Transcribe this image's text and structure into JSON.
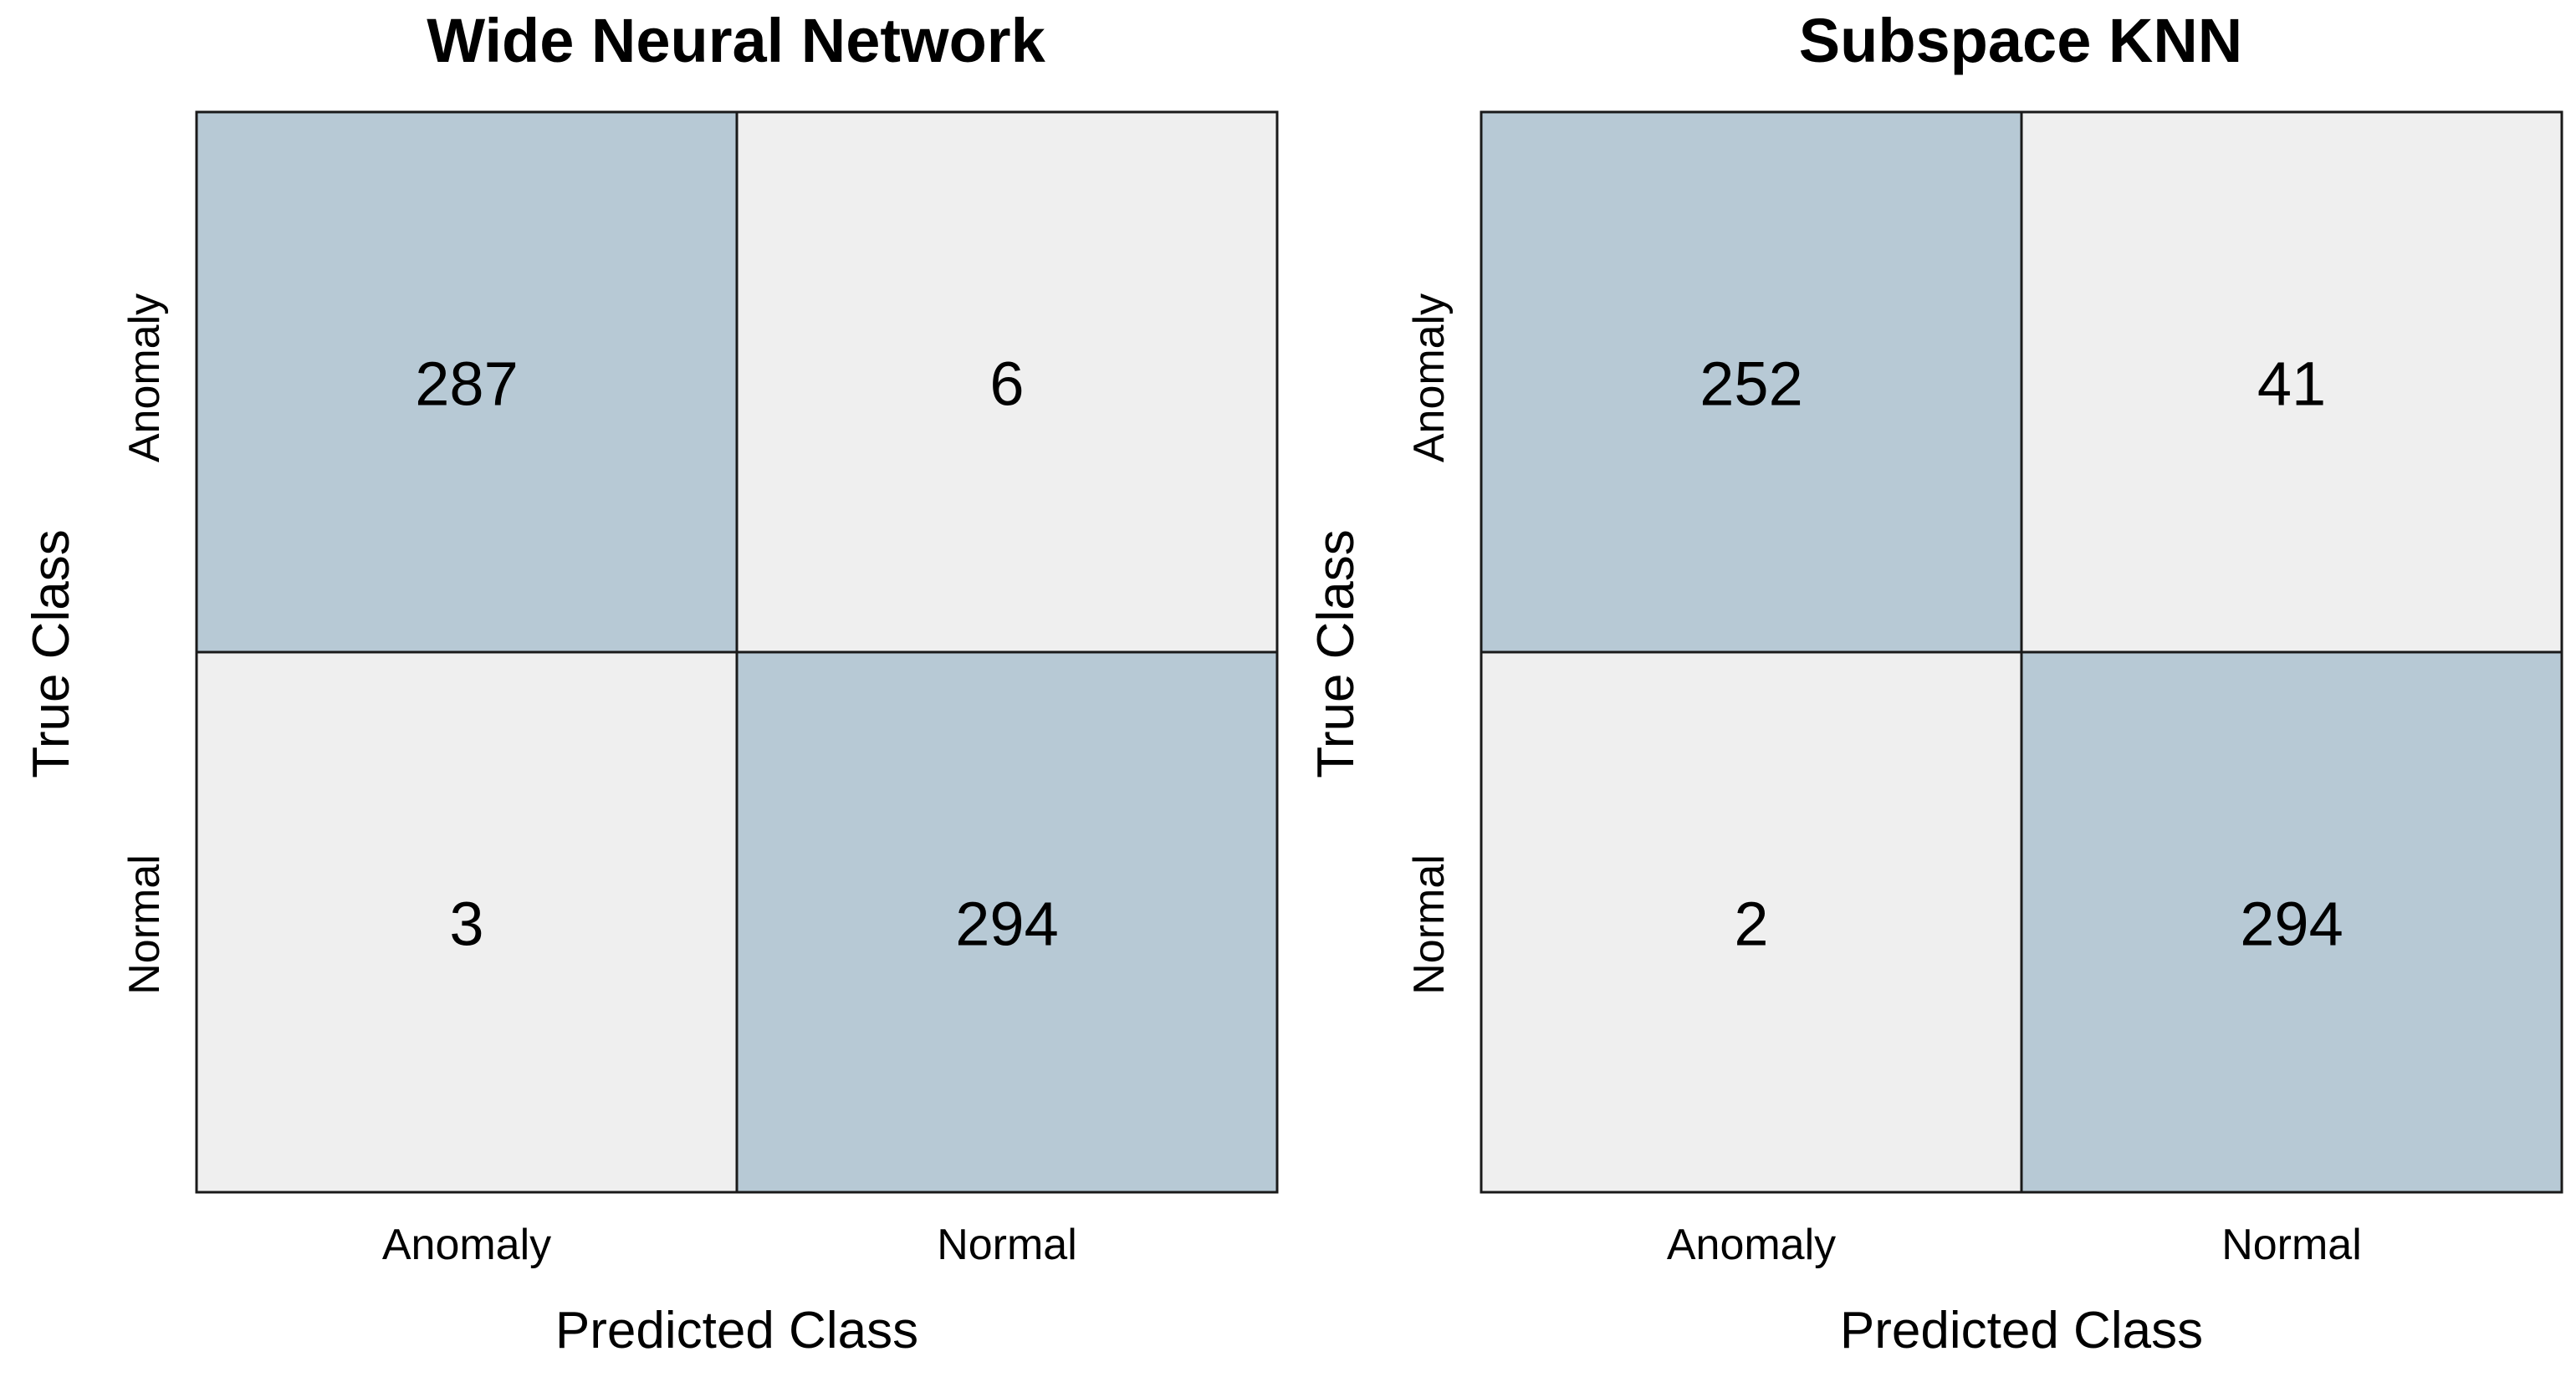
{
  "chart_data": [
    {
      "type": "heatmap",
      "title": "Wide Neural Network",
      "xlabel": "Predicted Class",
      "ylabel": "True Class",
      "x_categories": [
        "Anomaly",
        "Normal"
      ],
      "y_categories": [
        "Anomaly",
        "Normal"
      ],
      "values": [
        [
          287,
          6
        ],
        [
          3,
          294
        ]
      ]
    },
    {
      "type": "heatmap",
      "title": "Subspace KNN",
      "xlabel": "Predicted Class",
      "ylabel": "True Class",
      "x_categories": [
        "Anomaly",
        "Normal"
      ],
      "y_categories": [
        "Anomaly",
        "Normal"
      ],
      "values": [
        [
          252,
          41
        ],
        [
          2,
          294
        ]
      ]
    }
  ],
  "colors": {
    "diagonal": "#b7c9d5",
    "off_diagonal": "#efefef",
    "border": "#1a1a1a"
  }
}
